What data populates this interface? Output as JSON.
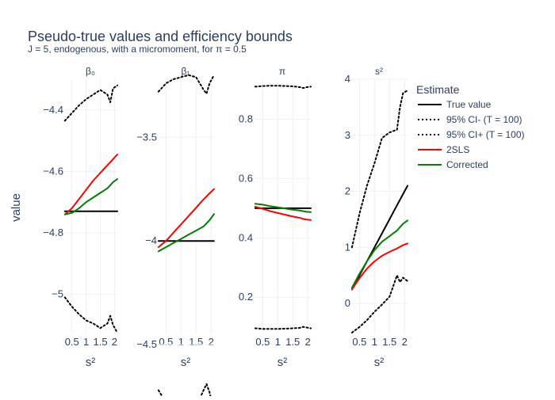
{
  "title": "Pseudo-true values and efficiency bounds",
  "subtitle": "J = 5, endogenous, with a micromoment,  for π = 0.5",
  "legend_title": "Estimate",
  "y_axis_label": "value",
  "colors": {
    "text": "#2a3f5f",
    "grid": "#eef0f5",
    "true": "#000000",
    "ci": "#000000",
    "tsls": "#ff0000",
    "corrected": "#008000"
  },
  "legend": [
    {
      "name": "True value",
      "color": "#000000",
      "dash": "solid"
    },
    {
      "name": "95% CI- (T = 100)",
      "color": "#000000",
      "dash": "dot"
    },
    {
      "name": "95% CI+ (T = 100)",
      "color": "#000000",
      "dash": "dot"
    },
    {
      "name": "2SLS",
      "color": "#ff0000",
      "dash": "solid"
    },
    {
      "name": "Corrected",
      "color": "#008000",
      "dash": "solid"
    }
  ],
  "chart_data": [
    {
      "type": "line",
      "title": "β₀",
      "xlabel": "s²",
      "ylabel": "value",
      "xlim": [
        0.2,
        2.1
      ],
      "ylim": [
        -5.13,
        -4.3
      ],
      "x_ticks": [
        0.5,
        1,
        1.5,
        2
      ],
      "x_tick_labels": [
        "0.5",
        "1",
        "1.5",
        "2"
      ],
      "y_ticks": [
        -4.4,
        -4.6,
        -4.8,
        -5
      ],
      "y_tick_labels": [
        "−4.4",
        "−4.6",
        "−4.8",
        "−5"
      ],
      "x": [
        0.25,
        0.5,
        0.75,
        1.0,
        1.25,
        1.5,
        1.75,
        1.85,
        1.95,
        2.1
      ],
      "series": [
        {
          "name": "True value",
          "values": [
            -4.73,
            -4.73,
            -4.73,
            -4.73,
            -4.73,
            -4.73,
            -4.73,
            -4.73,
            -4.73,
            -4.73
          ]
        },
        {
          "name": "95% CI- (T = 100)",
          "values": [
            -5.01,
            -5.04,
            -5.065,
            -5.085,
            -5.095,
            -5.11,
            -5.095,
            -5.07,
            -5.1,
            -5.125
          ]
        },
        {
          "name": "95% CI+ (T = 100)",
          "values": [
            -4.435,
            -4.41,
            -4.385,
            -4.365,
            -4.35,
            -4.335,
            -4.35,
            -4.375,
            -4.33,
            -4.32
          ]
        },
        {
          "name": "2SLS",
          "values": [
            -4.74,
            -4.72,
            -4.69,
            -4.66,
            -4.63,
            -4.605,
            -4.58,
            -4.57,
            -4.56,
            -4.545
          ]
        },
        {
          "name": "Corrected",
          "values": [
            -4.74,
            -4.735,
            -4.72,
            -4.7,
            -4.685,
            -4.67,
            -4.655,
            -4.645,
            -4.635,
            -4.625
          ]
        }
      ]
    },
    {
      "type": "line",
      "title": "β₁",
      "xlabel": "s²",
      "xlim": [
        0.2,
        2.1
      ],
      "ylim": [
        -4.45,
        -3.22
      ],
      "x_ticks": [
        0.5,
        1,
        1.5,
        2
      ],
      "x_tick_labels": [
        "0.5",
        "1",
        "1.5",
        "2"
      ],
      "y_ticks": [
        -3.5,
        -4,
        -4.5
      ],
      "y_tick_labels": [
        "−3.5",
        "−4",
        "−4.5"
      ],
      "x": [
        0.25,
        0.5,
        0.75,
        1.0,
        1.25,
        1.5,
        1.75,
        1.85,
        1.95,
        2.1
      ],
      "series": [
        {
          "name": "True value",
          "values": [
            -4.0,
            -4.0,
            -4.0,
            -4.0,
            -4.0,
            -4.0,
            -4.0,
            -4.0,
            -4.0,
            -4.0
          ]
        },
        {
          "name": "95% CI- (T = 100)",
          "values": [
            -4.72,
            -4.78,
            -4.8,
            -4.81,
            -4.81,
            -4.8,
            -4.72,
            -4.69,
            -4.73,
            -4.83
          ]
        },
        {
          "name": "95% CI+ (T = 100)",
          "values": [
            -3.28,
            -3.24,
            -3.22,
            -3.21,
            -3.2,
            -3.21,
            -3.27,
            -3.29,
            -3.24,
            -3.2
          ]
        },
        {
          "name": "2SLS",
          "values": [
            -4.03,
            -4.0,
            -3.96,
            -3.92,
            -3.88,
            -3.84,
            -3.8,
            -3.785,
            -3.77,
            -3.75
          ]
        },
        {
          "name": "Corrected",
          "values": [
            -4.05,
            -4.03,
            -4.01,
            -3.99,
            -3.97,
            -3.95,
            -3.93,
            -3.915,
            -3.9,
            -3.87
          ]
        }
      ]
    },
    {
      "type": "line",
      "title": "π",
      "xlabel": "s²",
      "xlim": [
        0.2,
        2.1
      ],
      "ylim": [
        0.075,
        0.935
      ],
      "x_ticks": [
        0.5,
        1,
        1.5,
        2
      ],
      "x_tick_labels": [
        "0.5",
        "1",
        "1.5",
        "2"
      ],
      "y_ticks": [
        0.8,
        0.6,
        0.4,
        0.2
      ],
      "y_tick_labels": [
        "0.8",
        "0.6",
        "0.4",
        "0.2"
      ],
      "x": [
        0.25,
        0.5,
        0.75,
        1.0,
        1.25,
        1.5,
        1.75,
        1.85,
        1.95,
        2.1
      ],
      "series": [
        {
          "name": "True value",
          "values": [
            0.5,
            0.5,
            0.5,
            0.5,
            0.5,
            0.5,
            0.5,
            0.5,
            0.5,
            0.5
          ]
        },
        {
          "name": "95% CI- (T = 100)",
          "values": [
            0.095,
            0.093,
            0.093,
            0.093,
            0.094,
            0.095,
            0.097,
            0.1,
            0.098,
            0.095
          ]
        },
        {
          "name": "95% CI+ (T = 100)",
          "values": [
            0.91,
            0.912,
            0.913,
            0.913,
            0.912,
            0.911,
            0.908,
            0.905,
            0.908,
            0.91
          ]
        },
        {
          "name": "2SLS",
          "values": [
            0.505,
            0.498,
            0.49,
            0.484,
            0.478,
            0.472,
            0.467,
            0.464,
            0.462,
            0.46
          ]
        },
        {
          "name": "Corrected",
          "values": [
            0.515,
            0.512,
            0.507,
            0.503,
            0.499,
            0.495,
            0.492,
            0.49,
            0.488,
            0.487
          ]
        }
      ]
    },
    {
      "type": "line",
      "title": "s²",
      "xlabel": "s²",
      "xlim": [
        0.2,
        2.1
      ],
      "ylim": [
        -0.55,
        4.0
      ],
      "x_ticks": [
        0.5,
        1,
        1.5,
        2
      ],
      "x_tick_labels": [
        "0.5",
        "1",
        "1.5",
        "2"
      ],
      "y_ticks": [
        4,
        3,
        2,
        1,
        0
      ],
      "y_tick_labels": [
        "4",
        "3",
        "2",
        "1",
        "0"
      ],
      "x": [
        0.25,
        0.5,
        0.75,
        1.0,
        1.25,
        1.5,
        1.75,
        1.85,
        1.95,
        2.1
      ],
      "series": [
        {
          "name": "True value",
          "values": [
            0.25,
            0.5,
            0.75,
            1.0,
            1.25,
            1.5,
            1.75,
            1.85,
            1.95,
            2.1
          ]
        },
        {
          "name": "95% CI- (T = 100)",
          "values": [
            -0.52,
            -0.42,
            -0.3,
            -0.15,
            -0.02,
            0.12,
            0.5,
            0.38,
            0.46,
            0.4
          ]
        },
        {
          "name": "95% CI+ (T = 100)",
          "values": [
            1.0,
            1.6,
            2.1,
            2.5,
            2.95,
            3.05,
            3.1,
            3.5,
            3.75,
            3.8
          ]
        },
        {
          "name": "2SLS",
          "values": [
            0.25,
            0.45,
            0.62,
            0.75,
            0.85,
            0.92,
            0.98,
            1.01,
            1.04,
            1.07
          ]
        },
        {
          "name": "Corrected",
          "values": [
            0.28,
            0.53,
            0.75,
            0.95,
            1.1,
            1.2,
            1.3,
            1.36,
            1.42,
            1.48
          ]
        }
      ]
    }
  ]
}
